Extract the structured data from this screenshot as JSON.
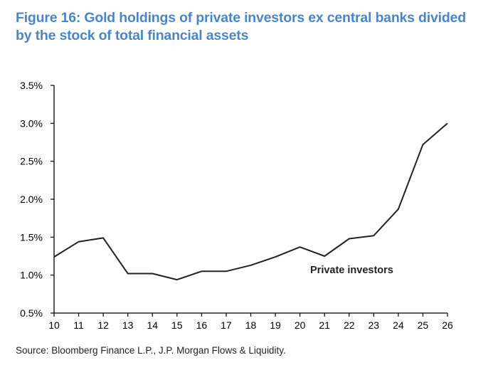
{
  "title_line1": "Figure 16: Gold holdings of private investors ex central banks divided",
  "title_line2": "by the stock of total financial assets",
  "source": "Source: Bloomberg Finance L.P., J.P. Morgan Flows & Liquidity.",
  "chart_data": {
    "type": "line",
    "title": "Figure 16: Gold holdings of private investors ex central banks divided by the stock of total financial assets",
    "xlabel": "",
    "ylabel": "",
    "x": [
      "10",
      "11",
      "12",
      "13",
      "14",
      "15",
      "16",
      "17",
      "18",
      "19",
      "20",
      "21",
      "22",
      "23",
      "24",
      "25",
      "26"
    ],
    "series": [
      {
        "name": "Private investors",
        "values": [
          1.24,
          1.44,
          1.49,
          1.02,
          1.02,
          0.94,
          1.05,
          1.05,
          1.13,
          1.24,
          1.37,
          1.25,
          1.48,
          1.52,
          1.87,
          2.72,
          3.0
        ]
      }
    ],
    "ylim": [
      0.5,
      3.5
    ],
    "yticks": [
      0.5,
      1.0,
      1.5,
      2.0,
      2.5,
      3.0,
      3.5
    ],
    "ytick_labels": [
      "0.5%",
      "1.0%",
      "1.5%",
      "2.0%",
      "2.5%",
      "3.0%",
      "3.5%"
    ],
    "annotation": "Private investors",
    "grid": false,
    "line_color": "#222222"
  }
}
